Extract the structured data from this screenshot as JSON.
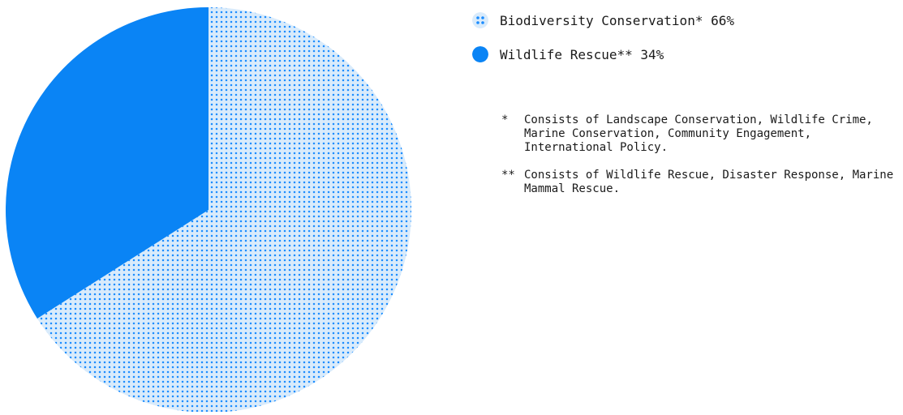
{
  "chart_data": {
    "type": "pie",
    "title": "",
    "slices": [
      {
        "label": "Biodiversity Conservation*",
        "value": 66,
        "display": "Biodiversity Conservation* 66%",
        "color": "#1a8cff",
        "fill": "dotted",
        "background": "#d9ebfb"
      },
      {
        "label": "Wildlife Rescue**",
        "value": 34,
        "display": "Wildlife Rescue** 34%",
        "color": "#0a84f5",
        "fill": "solid"
      }
    ],
    "legend_position": "right"
  },
  "notes": [
    {
      "marker": "*",
      "text": "Consists of Landscape Conservation, Wildlife Crime, Marine Conservation, Community Engagement, International Policy."
    },
    {
      "marker": "**",
      "text": "Consists of Wildlife Rescue, Disaster Response, Marine Mammal Rescue."
    }
  ]
}
